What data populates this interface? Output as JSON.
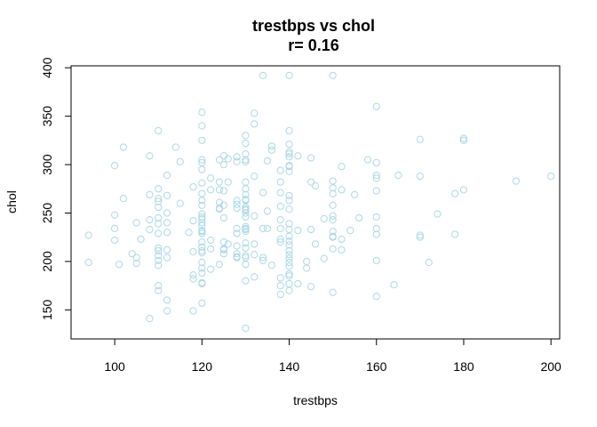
{
  "chart_data": {
    "type": "scatter",
    "title": "trestbps vs chol",
    "subtitle": "r= 0.16",
    "xlabel": "trestbps",
    "ylabel": "chol",
    "xlim": [
      90,
      202
    ],
    "ylim": [
      120,
      402
    ],
    "xticks": [
      100,
      120,
      140,
      160,
      180,
      200
    ],
    "yticks": [
      150,
      200,
      250,
      300,
      350,
      400
    ],
    "grid": false,
    "point_color": "#add8e6",
    "series": [
      {
        "points": [
          [
            94,
            227
          ],
          [
            94,
            199
          ],
          [
            100,
            299
          ],
          [
            100,
            248
          ],
          [
            100,
            234
          ],
          [
            100,
            222
          ],
          [
            101,
            197
          ],
          [
            102,
            265
          ],
          [
            102,
            318
          ],
          [
            104,
            208
          ],
          [
            105,
            204
          ],
          [
            105,
            198
          ],
          [
            105,
            240
          ],
          [
            106,
            223
          ],
          [
            108,
            309
          ],
          [
            108,
            269
          ],
          [
            108,
            243
          ],
          [
            108,
            233
          ],
          [
            108,
            141
          ],
          [
            110,
            335
          ],
          [
            110,
            275
          ],
          [
            110,
            265
          ],
          [
            110,
            262
          ],
          [
            110,
            256
          ],
          [
            110,
            245
          ],
          [
            110,
            239
          ],
          [
            110,
            229
          ],
          [
            110,
            214
          ],
          [
            110,
            211
          ],
          [
            110,
            206
          ],
          [
            110,
            201
          ],
          [
            110,
            196
          ],
          [
            110,
            175
          ],
          [
            110,
            170
          ],
          [
            112,
            289
          ],
          [
            112,
            268
          ],
          [
            112,
            250
          ],
          [
            112,
            240
          ],
          [
            112,
            230
          ],
          [
            112,
            212
          ],
          [
            112,
            204
          ],
          [
            112,
            160
          ],
          [
            112,
            149
          ],
          [
            114,
            318
          ],
          [
            115,
            303
          ],
          [
            115,
            260
          ],
          [
            117,
            230
          ],
          [
            118,
            242
          ],
          [
            118,
            210
          ],
          [
            118,
            186
          ],
          [
            118,
            182
          ],
          [
            118,
            149
          ],
          [
            118,
            277
          ],
          [
            120,
            354
          ],
          [
            120,
            340
          ],
          [
            120,
            325
          ],
          [
            120,
            305
          ],
          [
            120,
            302
          ],
          [
            120,
            295
          ],
          [
            120,
            281
          ],
          [
            120,
            270
          ],
          [
            120,
            263
          ],
          [
            120,
            258
          ],
          [
            120,
            249
          ],
          [
            120,
            246
          ],
          [
            120,
            244
          ],
          [
            120,
            240
          ],
          [
            120,
            237
          ],
          [
            120,
            231
          ],
          [
            120,
            229
          ],
          [
            120,
            220
          ],
          [
            120,
            215
          ],
          [
            120,
            211
          ],
          [
            120,
            209
          ],
          [
            120,
            199
          ],
          [
            120,
            193
          ],
          [
            120,
            188
          ],
          [
            120,
            178
          ],
          [
            120,
            177
          ],
          [
            120,
            157
          ],
          [
            120,
            232
          ],
          [
            122,
            286
          ],
          [
            122,
            274
          ],
          [
            122,
            222
          ],
          [
            122,
            213
          ],
          [
            122,
            192
          ],
          [
            124,
            305
          ],
          [
            124,
            282
          ],
          [
            124,
            274
          ],
          [
            124,
            261
          ],
          [
            124,
            255
          ],
          [
            124,
            254
          ],
          [
            124,
            197
          ],
          [
            125,
            309
          ],
          [
            125,
            300
          ],
          [
            125,
            273
          ],
          [
            125,
            258
          ],
          [
            125,
            245
          ],
          [
            125,
            220
          ],
          [
            125,
            213
          ],
          [
            125,
            212
          ],
          [
            125,
            208
          ],
          [
            126,
            306
          ],
          [
            126,
            282
          ],
          [
            126,
            218
          ],
          [
            128,
            308
          ],
          [
            128,
            303
          ],
          [
            128,
            263
          ],
          [
            128,
            259
          ],
          [
            128,
            255
          ],
          [
            128,
            234
          ],
          [
            128,
            229
          ],
          [
            128,
            216
          ],
          [
            128,
            205
          ],
          [
            128,
            204
          ],
          [
            128,
            208
          ],
          [
            130,
            330
          ],
          [
            130,
            322
          ],
          [
            130,
            311
          ],
          [
            130,
            305
          ],
          [
            130,
            303
          ],
          [
            130,
            282
          ],
          [
            130,
            275
          ],
          [
            130,
            269
          ],
          [
            130,
            264
          ],
          [
            130,
            263
          ],
          [
            130,
            256
          ],
          [
            130,
            254
          ],
          [
            130,
            253
          ],
          [
            130,
            250
          ],
          [
            130,
            246
          ],
          [
            130,
            236
          ],
          [
            130,
            234
          ],
          [
            130,
            233
          ],
          [
            130,
            231
          ],
          [
            130,
            219
          ],
          [
            130,
            214
          ],
          [
            130,
            206
          ],
          [
            130,
            204
          ],
          [
            130,
            197
          ],
          [
            130,
            180
          ],
          [
            130,
            131
          ],
          [
            132,
            353
          ],
          [
            132,
            342
          ],
          [
            132,
            288
          ],
          [
            132,
            247
          ],
          [
            132,
            218
          ],
          [
            132,
            207
          ],
          [
            132,
            184
          ],
          [
            134,
            392
          ],
          [
            134,
            271
          ],
          [
            134,
            234
          ],
          [
            134,
            204
          ],
          [
            134,
            201
          ],
          [
            135,
            304
          ],
          [
            135,
            252
          ],
          [
            135,
            234
          ],
          [
            136,
            319
          ],
          [
            136,
            315
          ],
          [
            136,
            196
          ],
          [
            138,
            294
          ],
          [
            138,
            282
          ],
          [
            138,
            271
          ],
          [
            138,
            257
          ],
          [
            138,
            243
          ],
          [
            138,
            234
          ],
          [
            138,
            223
          ],
          [
            138,
            220
          ],
          [
            138,
            183
          ],
          [
            138,
            175
          ],
          [
            138,
            166
          ],
          [
            140,
            392
          ],
          [
            140,
            335
          ],
          [
            140,
            321
          ],
          [
            140,
            313
          ],
          [
            140,
            311
          ],
          [
            140,
            308
          ],
          [
            140,
            299
          ],
          [
            140,
            298
          ],
          [
            140,
            293
          ],
          [
            140,
            268
          ],
          [
            140,
            263
          ],
          [
            140,
            254
          ],
          [
            140,
            239
          ],
          [
            140,
            233
          ],
          [
            140,
            226
          ],
          [
            140,
            221
          ],
          [
            140,
            217
          ],
          [
            140,
            211
          ],
          [
            140,
            207
          ],
          [
            140,
            203
          ],
          [
            140,
            199
          ],
          [
            140,
            195
          ],
          [
            140,
            187
          ],
          [
            140,
            185
          ],
          [
            140,
            177
          ],
          [
            140,
            170
          ],
          [
            142,
            309
          ],
          [
            142,
            232
          ],
          [
            142,
            177
          ],
          [
            144,
            200
          ],
          [
            144,
            193
          ],
          [
            145,
            307
          ],
          [
            145,
            282
          ],
          [
            145,
            233
          ],
          [
            145,
            174
          ],
          [
            146,
            278
          ],
          [
            146,
            218
          ],
          [
            148,
            244
          ],
          [
            148,
            203
          ],
          [
            150,
            392
          ],
          [
            150,
            283
          ],
          [
            150,
            276
          ],
          [
            150,
            270
          ],
          [
            150,
            258
          ],
          [
            150,
            247
          ],
          [
            150,
            243
          ],
          [
            150,
            226
          ],
          [
            150,
            225
          ],
          [
            150,
            213
          ],
          [
            150,
            231
          ],
          [
            150,
            168
          ],
          [
            152,
            298
          ],
          [
            152,
            274
          ],
          [
            152,
            212
          ],
          [
            152,
            223
          ],
          [
            154,
            232
          ],
          [
            155,
            269
          ],
          [
            156,
            245
          ],
          [
            158,
            305
          ],
          [
            160,
            360
          ],
          [
            160,
            302
          ],
          [
            160,
            289
          ],
          [
            160,
            286
          ],
          [
            160,
            273
          ],
          [
            160,
            246
          ],
          [
            160,
            234
          ],
          [
            160,
            228
          ],
          [
            160,
            201
          ],
          [
            160,
            164
          ],
          [
            164,
            176
          ],
          [
            165,
            289
          ],
          [
            170,
            326
          ],
          [
            170,
            288
          ],
          [
            170,
            227
          ],
          [
            170,
            225
          ],
          [
            172,
            199
          ],
          [
            174,
            249
          ],
          [
            178,
            270
          ],
          [
            178,
            228
          ],
          [
            180,
            327
          ],
          [
            180,
            325
          ],
          [
            180,
            274
          ],
          [
            192,
            283
          ],
          [
            200,
            288
          ]
        ]
      }
    ]
  }
}
